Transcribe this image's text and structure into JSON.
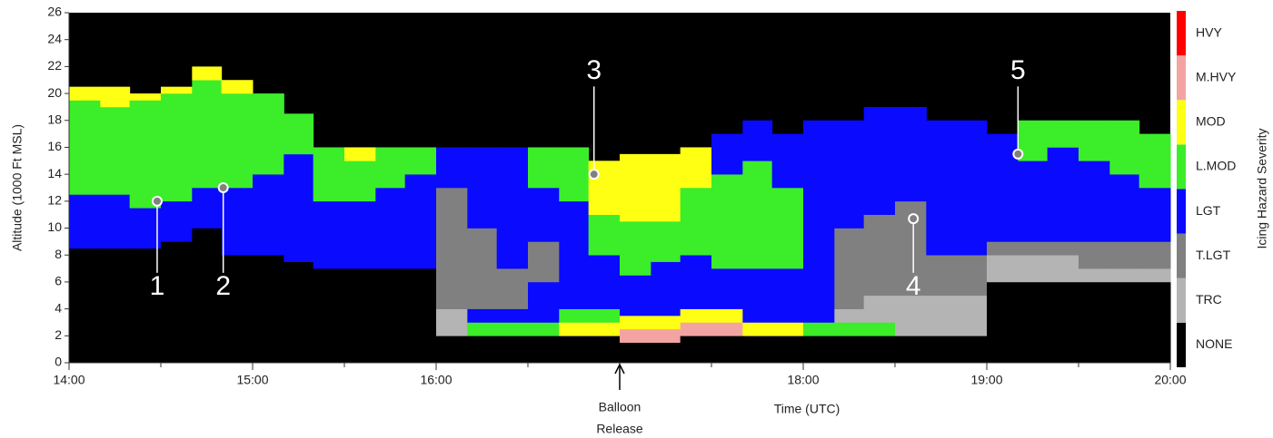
{
  "chart_data": {
    "type": "profile",
    "ylabel": "Altitude (1000 Ft MSL)",
    "xlabel": "Time (UTC)",
    "xlim": [
      14,
      20
    ],
    "ylim": [
      0,
      26
    ],
    "xticks": [
      {
        "value": 14,
        "label": "14:00"
      },
      {
        "value": 15,
        "label": "15:00"
      },
      {
        "value": 16,
        "label": "16:00"
      },
      {
        "value": 18,
        "label": "18:00"
      },
      {
        "value": 19,
        "label": "19:00"
      },
      {
        "value": 20,
        "label": "20:00"
      }
    ],
    "xminor": [
      14.5,
      15.5,
      16.5,
      17,
      17.5,
      18.5,
      19.5
    ],
    "yticks": [
      0,
      2,
      4,
      6,
      8,
      10,
      12,
      14,
      16,
      18,
      20,
      22,
      24,
      26
    ],
    "legend_title": "Icing Hazard Severity",
    "classes": [
      {
        "name": "NONE",
        "color": "#000000"
      },
      {
        "name": "TRC",
        "color": "#b4b4b4"
      },
      {
        "name": "T.LGT",
        "color": "#808080"
      },
      {
        "name": "LGT",
        "color": "#0a0aff"
      },
      {
        "name": "L.MOD",
        "color": "#3ced2a"
      },
      {
        "name": "MOD",
        "color": "#ffff14"
      },
      {
        "name": "M.HVY",
        "color": "#f4a3a3"
      },
      {
        "name": "HVY",
        "color": "#ff0000"
      }
    ],
    "columns": [
      {
        "x": 14,
        "layers": [
          [
            0,
            8.5
          ],
          [
            3,
            4
          ],
          [
            4,
            7
          ],
          [
            5,
            1
          ]
        ]
      },
      {
        "x": 14.17,
        "layers": [
          [
            0,
            8.5
          ],
          [
            3,
            4
          ],
          [
            4,
            6.5
          ],
          [
            5,
            1.5
          ]
        ]
      },
      {
        "x": 14.33,
        "layers": [
          [
            0,
            8.5
          ],
          [
            3,
            3
          ],
          [
            4,
            8
          ],
          [
            5,
            0.5
          ]
        ]
      },
      {
        "x": 14.5,
        "layers": [
          [
            0,
            9
          ],
          [
            3,
            3
          ],
          [
            4,
            8
          ],
          [
            5,
            0.5
          ]
        ]
      },
      {
        "x": 14.67,
        "layers": [
          [
            0,
            10
          ],
          [
            3,
            3
          ],
          [
            4,
            8
          ],
          [
            5,
            1
          ]
        ]
      },
      {
        "x": 14.83,
        "layers": [
          [
            0,
            8
          ],
          [
            3,
            5
          ],
          [
            4,
            7
          ],
          [
            5,
            1
          ]
        ]
      },
      {
        "x": 15,
        "layers": [
          [
            0,
            8
          ],
          [
            3,
            6
          ],
          [
            4,
            6
          ]
        ]
      },
      {
        "x": 15.17,
        "layers": [
          [
            0,
            7.5
          ],
          [
            3,
            8
          ],
          [
            4,
            3
          ]
        ]
      },
      {
        "x": 15.33,
        "layers": [
          [
            0,
            7
          ],
          [
            3,
            5
          ],
          [
            4,
            4
          ]
        ]
      },
      {
        "x": 15.5,
        "layers": [
          [
            0,
            7
          ],
          [
            3,
            5
          ],
          [
            4,
            3
          ],
          [
            5,
            1
          ]
        ]
      },
      {
        "x": 15.67,
        "layers": [
          [
            0,
            7
          ],
          [
            3,
            6
          ],
          [
            4,
            3
          ]
        ]
      },
      {
        "x": 15.83,
        "layers": [
          [
            0,
            7
          ],
          [
            3,
            7
          ],
          [
            4,
            2
          ]
        ]
      },
      {
        "x": 16,
        "layers": [
          [
            0,
            2
          ],
          [
            1,
            2
          ],
          [
            2,
            9
          ],
          [
            3,
            3
          ]
        ]
      },
      {
        "x": 16.17,
        "layers": [
          [
            0,
            2
          ],
          [
            4,
            1
          ],
          [
            3,
            1
          ],
          [
            2,
            6
          ],
          [
            3,
            6
          ]
        ]
      },
      {
        "x": 16.33,
        "layers": [
          [
            0,
            2
          ],
          [
            4,
            1
          ],
          [
            3,
            1
          ],
          [
            2,
            3
          ],
          [
            3,
            9
          ]
        ]
      },
      {
        "x": 16.5,
        "layers": [
          [
            0,
            2
          ],
          [
            4,
            1
          ],
          [
            3,
            3
          ],
          [
            2,
            3
          ],
          [
            3,
            4
          ],
          [
            4,
            3
          ]
        ]
      },
      {
        "x": 16.67,
        "layers": [
          [
            0,
            2
          ],
          [
            5,
            1
          ],
          [
            4,
            1
          ],
          [
            3,
            8
          ],
          [
            4,
            4
          ]
        ]
      },
      {
        "x": 16.83,
        "layers": [
          [
            0,
            2
          ],
          [
            5,
            1
          ],
          [
            4,
            1
          ],
          [
            3,
            4
          ],
          [
            4,
            3
          ],
          [
            5,
            4
          ]
        ]
      },
      {
        "x": 17,
        "layers": [
          [
            0,
            1.5
          ],
          [
            6,
            1
          ],
          [
            5,
            1
          ],
          [
            3,
            3
          ],
          [
            4,
            4
          ],
          [
            5,
            5
          ]
        ]
      },
      {
        "x": 17.17,
        "layers": [
          [
            0,
            1.5
          ],
          [
            6,
            1
          ],
          [
            5,
            1
          ],
          [
            3,
            4
          ],
          [
            4,
            3
          ],
          [
            5,
            5
          ]
        ]
      },
      {
        "x": 17.33,
        "layers": [
          [
            0,
            2
          ],
          [
            6,
            1
          ],
          [
            5,
            1
          ],
          [
            3,
            4
          ],
          [
            4,
            5
          ],
          [
            5,
            3
          ]
        ]
      },
      {
        "x": 17.5,
        "layers": [
          [
            0,
            2
          ],
          [
            6,
            1
          ],
          [
            5,
            1
          ],
          [
            3,
            3
          ],
          [
            4,
            7
          ],
          [
            3,
            3
          ]
        ]
      },
      {
        "x": 17.67,
        "layers": [
          [
            0,
            2
          ],
          [
            5,
            1
          ],
          [
            3,
            4
          ],
          [
            4,
            8
          ],
          [
            3,
            3
          ]
        ]
      },
      {
        "x": 17.83,
        "layers": [
          [
            0,
            2
          ],
          [
            5,
            1
          ],
          [
            3,
            4
          ],
          [
            4,
            6
          ],
          [
            3,
            4
          ]
        ]
      },
      {
        "x": 18,
        "layers": [
          [
            0,
            2
          ],
          [
            4,
            1
          ],
          [
            3,
            15
          ]
        ]
      },
      {
        "x": 18.17,
        "layers": [
          [
            0,
            2
          ],
          [
            4,
            1
          ],
          [
            1,
            1
          ],
          [
            2,
            6
          ],
          [
            3,
            8
          ]
        ]
      },
      {
        "x": 18.33,
        "layers": [
          [
            0,
            2
          ],
          [
            4,
            1
          ],
          [
            1,
            2
          ],
          [
            2,
            6
          ],
          [
            3,
            8
          ]
        ]
      },
      {
        "x": 18.5,
        "layers": [
          [
            0,
            2
          ],
          [
            1,
            3
          ],
          [
            2,
            7
          ],
          [
            3,
            7
          ]
        ]
      },
      {
        "x": 18.67,
        "layers": [
          [
            0,
            2
          ],
          [
            1,
            3
          ],
          [
            2,
            3
          ],
          [
            3,
            10
          ]
        ]
      },
      {
        "x": 18.83,
        "layers": [
          [
            0,
            2
          ],
          [
            1,
            3
          ],
          [
            2,
            3
          ],
          [
            3,
            10
          ]
        ]
      },
      {
        "x": 19,
        "layers": [
          [
            0,
            6
          ],
          [
            1,
            2
          ],
          [
            2,
            1
          ],
          [
            3,
            8
          ]
        ]
      },
      {
        "x": 19.17,
        "layers": [
          [
            0,
            6
          ],
          [
            1,
            2
          ],
          [
            2,
            1
          ],
          [
            3,
            6
          ],
          [
            4,
            3
          ]
        ]
      },
      {
        "x": 19.33,
        "layers": [
          [
            0,
            6
          ],
          [
            1,
            2
          ],
          [
            2,
            1
          ],
          [
            3,
            7
          ],
          [
            4,
            2
          ]
        ]
      },
      {
        "x": 19.5,
        "layers": [
          [
            0,
            6
          ],
          [
            1,
            1
          ],
          [
            2,
            2
          ],
          [
            3,
            6
          ],
          [
            4,
            3
          ]
        ]
      },
      {
        "x": 19.67,
        "layers": [
          [
            0,
            6
          ],
          [
            1,
            1
          ],
          [
            2,
            2
          ],
          [
            3,
            5
          ],
          [
            4,
            4
          ]
        ]
      },
      {
        "x": 19.83,
        "layers": [
          [
            0,
            6
          ],
          [
            1,
            1
          ],
          [
            2,
            2
          ],
          [
            3,
            4
          ],
          [
            4,
            4
          ]
        ]
      }
    ],
    "points": [
      {
        "label": "1",
        "x": 14.48,
        "y": 12
      },
      {
        "label": "2",
        "x": 14.84,
        "y": 13
      },
      {
        "label": "3",
        "x": 16.86,
        "y": 14
      },
      {
        "label": "4",
        "x": 18.6,
        "y": 10.7
      },
      {
        "label": "5",
        "x": 19.17,
        "y": 15.5
      }
    ],
    "release": {
      "x": 17,
      "text": [
        "Balloon",
        "Release"
      ]
    }
  }
}
